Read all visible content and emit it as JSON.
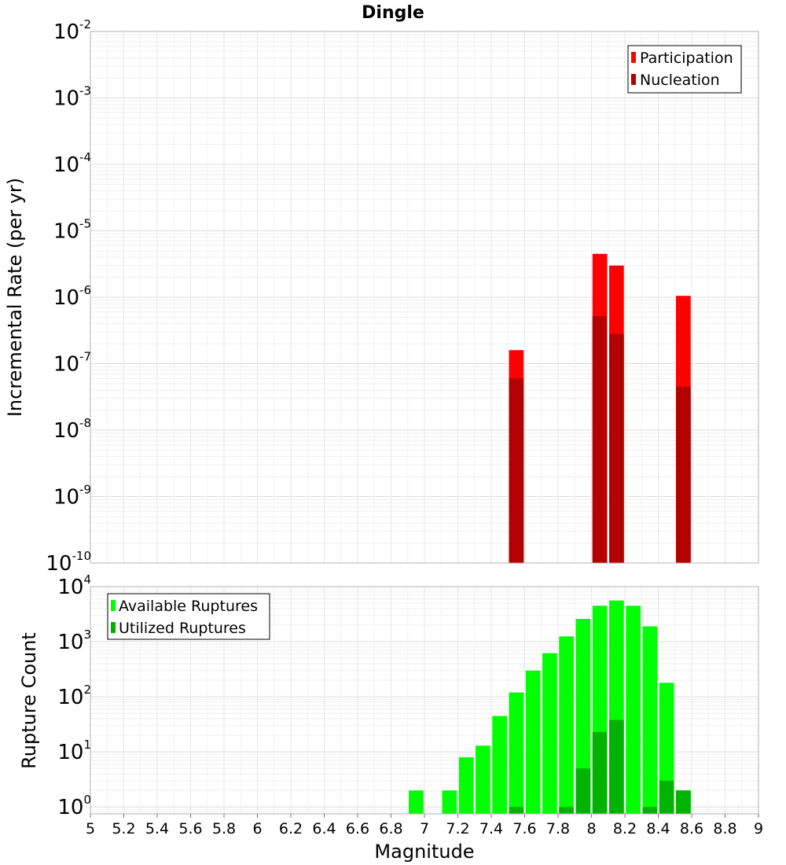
{
  "chart_data": [
    {
      "type": "bar",
      "title": "Dingle",
      "xlabel": "",
      "ylabel": "Incremental Rate (per yr)",
      "xlim": [
        5,
        9
      ],
      "ylim": [
        1e-10,
        0.01
      ],
      "yscale": "log",
      "y_tick_exponents": [
        "-2",
        "-3",
        "-4",
        "-5",
        "-6",
        "-7",
        "-8",
        "-9",
        "-10"
      ],
      "grid": true,
      "legend_position": "top-right",
      "bar_width": 0.1,
      "series": [
        {
          "name": "Participation",
          "color": "#ff0000",
          "points": [
            {
              "x": 7.55,
              "y": 1.6e-07
            },
            {
              "x": 8.05,
              "y": 4.5e-06
            },
            {
              "x": 8.15,
              "y": 3e-06
            },
            {
              "x": 8.55,
              "y": 1.05e-06
            }
          ]
        },
        {
          "name": "Nucleation",
          "color": "#b30000",
          "points": [
            {
              "x": 7.55,
              "y": 6e-08
            },
            {
              "x": 8.05,
              "y": 5.2e-07
            },
            {
              "x": 8.15,
              "y": 2.8e-07
            },
            {
              "x": 8.55,
              "y": 4.5e-08
            }
          ]
        }
      ]
    },
    {
      "type": "bar",
      "title": "",
      "xlabel": "Magnitude",
      "ylabel": "Rupture Count",
      "xlim": [
        5,
        9
      ],
      "ylim": [
        0.75,
        10000
      ],
      "yscale": "log",
      "y_tick_exponents": [
        "4",
        "3",
        "2",
        "1",
        "0"
      ],
      "x_ticks": [
        "5",
        "5.2",
        "5.4",
        "5.6",
        "5.8",
        "6",
        "6.2",
        "6.4",
        "6.6",
        "6.8",
        "7",
        "7.2",
        "7.4",
        "7.6",
        "7.8",
        "8",
        "8.2",
        "8.4",
        "8.6",
        "8.8",
        "9"
      ],
      "grid": true,
      "legend_position": "top-left",
      "bar_width": 0.1,
      "series": [
        {
          "name": "Available Ruptures",
          "color": "#00ff00",
          "points": [
            {
              "x": 6.95,
              "y": 2
            },
            {
              "x": 7.15,
              "y": 2
            },
            {
              "x": 7.25,
              "y": 8
            },
            {
              "x": 7.35,
              "y": 13
            },
            {
              "x": 7.45,
              "y": 45
            },
            {
              "x": 7.55,
              "y": 120
            },
            {
              "x": 7.65,
              "y": 300
            },
            {
              "x": 7.75,
              "y": 620
            },
            {
              "x": 7.85,
              "y": 1250
            },
            {
              "x": 7.95,
              "y": 2600
            },
            {
              "x": 8.05,
              "y": 4500
            },
            {
              "x": 8.15,
              "y": 5600
            },
            {
              "x": 8.25,
              "y": 4500
            },
            {
              "x": 8.35,
              "y": 1900
            },
            {
              "x": 8.45,
              "y": 180
            },
            {
              "x": 8.55,
              "y": 2
            }
          ]
        },
        {
          "name": "Utilized Ruptures",
          "color": "#00b300",
          "points": [
            {
              "x": 7.55,
              "y": 1
            },
            {
              "x": 7.85,
              "y": 1
            },
            {
              "x": 7.95,
              "y": 5
            },
            {
              "x": 8.05,
              "y": 23
            },
            {
              "x": 8.15,
              "y": 38
            },
            {
              "x": 8.35,
              "y": 1
            },
            {
              "x": 8.45,
              "y": 3
            },
            {
              "x": 8.55,
              "y": 2
            }
          ]
        }
      ]
    }
  ]
}
